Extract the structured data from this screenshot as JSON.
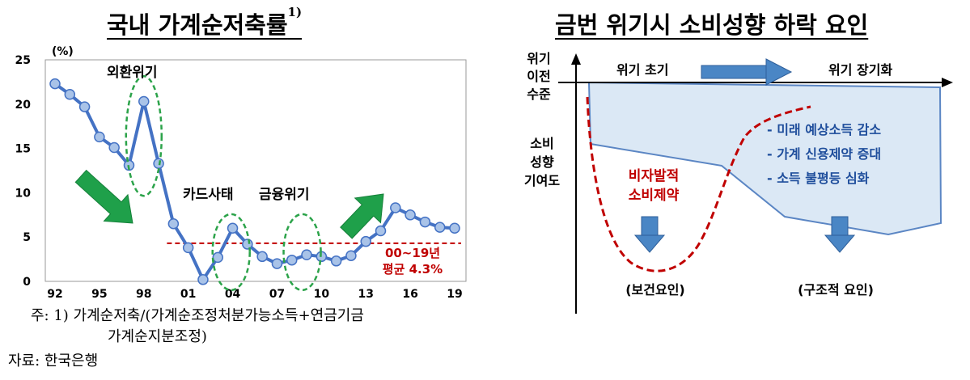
{
  "left_panel": {
    "title": "국내 가계순저축률",
    "title_sup": "1)",
    "chart_data": {
      "type": "line",
      "unit_label": "(%)",
      "x_ticks": [
        "92",
        "95",
        "98",
        "01",
        "04",
        "07",
        "10",
        "13",
        "16",
        "19"
      ],
      "x": [
        1992,
        1993,
        1994,
        1995,
        1996,
        1997,
        1998,
        1999,
        2000,
        2001,
        2002,
        2003,
        2004,
        2005,
        2006,
        2007,
        2008,
        2009,
        2010,
        2011,
        2012,
        2013,
        2014,
        2015,
        2016,
        2017,
        2018,
        2019
      ],
      "values": [
        22.3,
        21.1,
        19.7,
        16.3,
        15.1,
        13.1,
        20.3,
        13.3,
        6.5,
        3.8,
        0.2,
        2.7,
        6.0,
        4.2,
        2.8,
        2.0,
        2.4,
        3.0,
        2.8,
        2.3,
        2.9,
        4.5,
        5.7,
        8.3,
        7.5,
        6.7,
        6.1,
        6.0
      ],
      "ylim": [
        0,
        25
      ],
      "y_ticks": [
        0,
        5,
        10,
        15,
        20,
        25
      ],
      "average": 4.3,
      "average_label_1": "00~19년",
      "average_label_2": "평균 4.3%",
      "annotations": [
        "외환위기",
        "카드사태",
        "금융위기"
      ],
      "colors": {
        "line": "#4472c4",
        "marker_fill": "#a9c3e8",
        "average_line": "#c00000",
        "arrow": "#1fa04a",
        "ellipse": "#2ca34a"
      }
    },
    "footnote_1": "주: 1) 가계순저축/(가계순조정처분가능소득+연금기금",
    "footnote_2": "가계순지분조정)",
    "source": "자료: 한국은행"
  },
  "right_panel": {
    "title": "금번 위기시 소비성향 하락 요인",
    "y_label_top": [
      "위기",
      "이전",
      "수준"
    ],
    "y_label_mid": [
      "소비",
      "성향",
      "기여도"
    ],
    "phase_early": "위기 초기",
    "phase_long": "위기 장기화",
    "red_label": [
      "비자발적",
      "소비제약"
    ],
    "factors": [
      "- 미래 예상소득 감소",
      "- 가계 신용제약 증대",
      "- 소득 불평등 심화"
    ],
    "bottom_left": "(보건요인)",
    "bottom_right": "(구조적 요인)",
    "colors": {
      "area_fill": "#dbe8f5",
      "area_stroke": "#5b86c4",
      "arrow": "#4a86c5",
      "red_curve": "#c00000",
      "factor_text": "#1f4e9c"
    }
  }
}
